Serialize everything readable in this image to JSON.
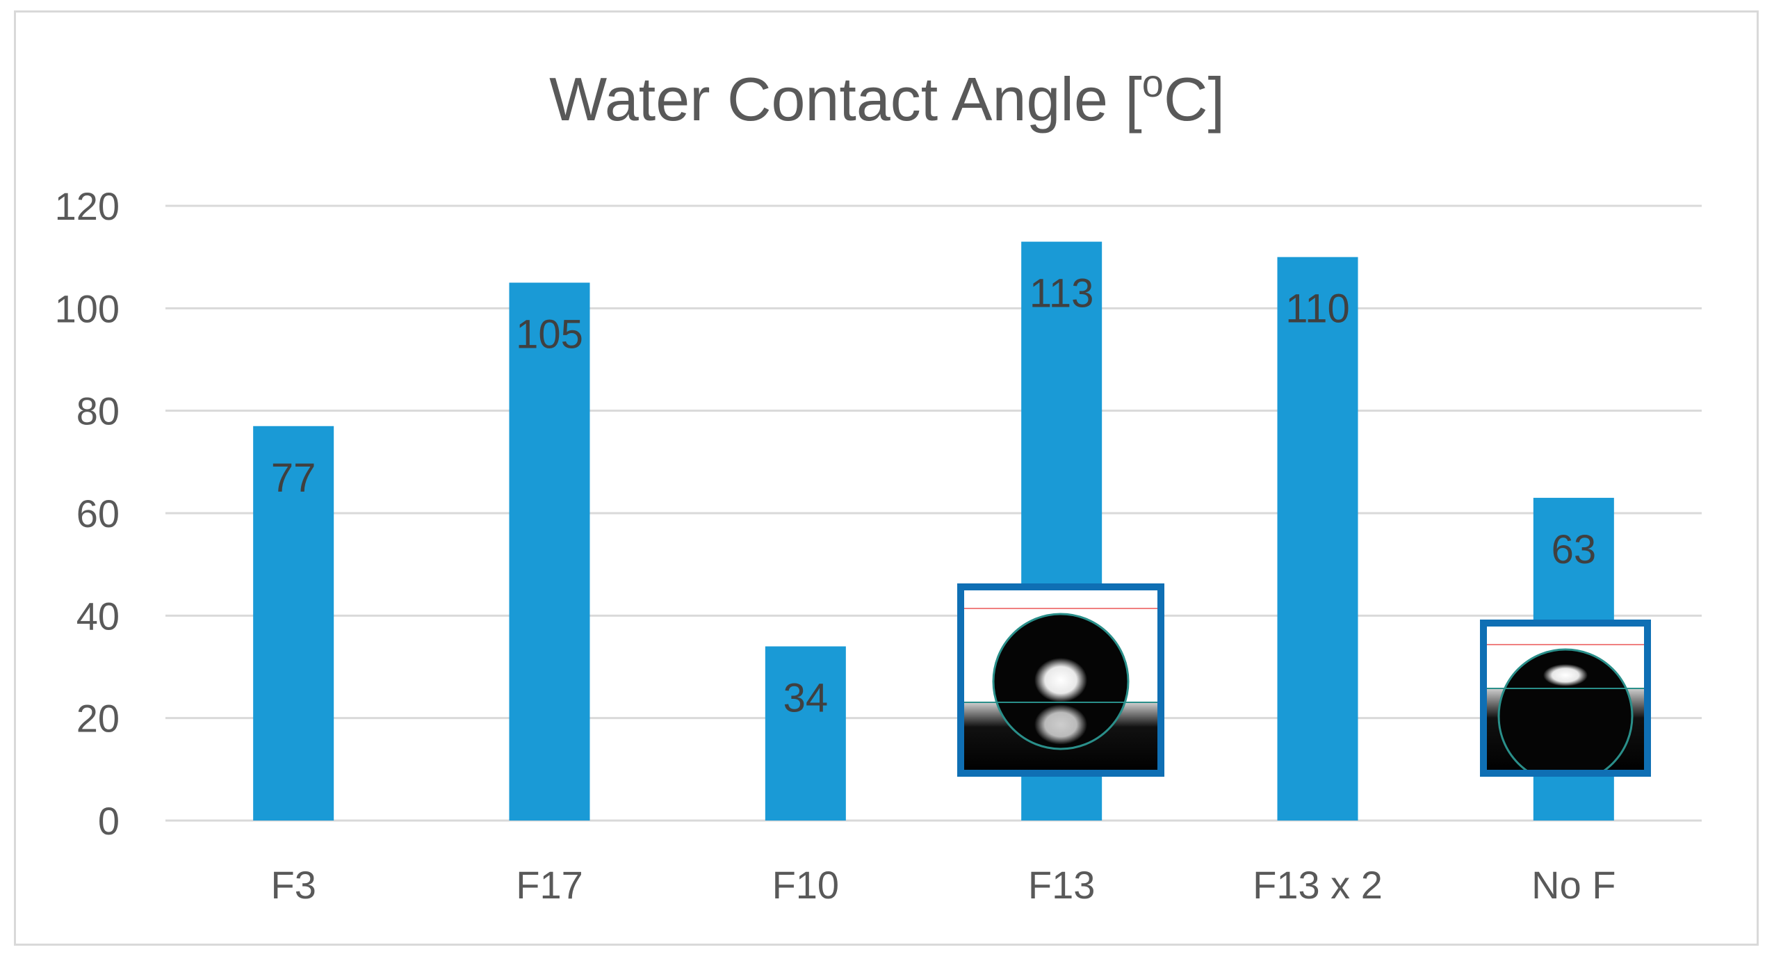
{
  "chart_data": {
    "type": "bar",
    "title": "Water Contact Angle [",
    "title_sup": "o",
    "title_end": "C]",
    "categories": [
      "F3",
      "F17",
      "F10",
      "F13",
      "F13 x 2",
      "No F"
    ],
    "values": [
      77,
      105,
      34,
      113,
      110,
      63
    ],
    "data_labels": [
      "77",
      "105",
      "34",
      "113",
      "110",
      "63"
    ],
    "y_ticks": [
      "0",
      "20",
      "40",
      "60",
      "80",
      "100",
      "120"
    ],
    "ylim": [
      0,
      120
    ],
    "grid": true,
    "legend": "none",
    "bar_color": "#1a9ad6",
    "inset_border_color": "#0f6fb4",
    "insets": [
      {
        "category": "F13",
        "picture": "water-droplet-high-contact-angle"
      },
      {
        "category": "No F",
        "picture": "water-droplet-low-contact-angle"
      }
    ]
  }
}
